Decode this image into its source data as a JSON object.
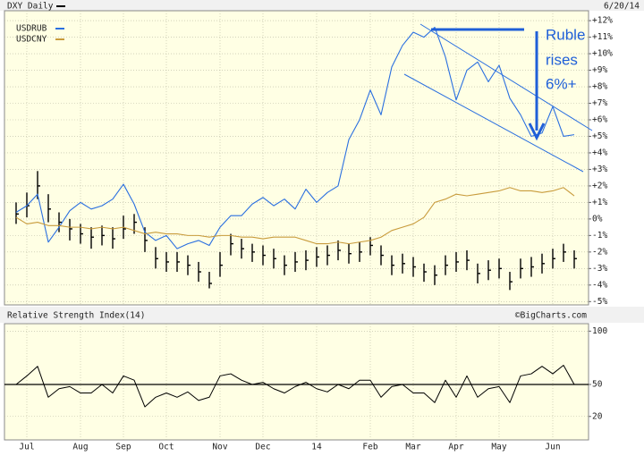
{
  "chart_data": [
    {
      "type": "ohlc",
      "title": "DXY Daily",
      "date": "6/20/14",
      "ohlc": {
        "color": "#000000",
        "high": [
          1.0,
          1.6,
          2.9,
          1.5,
          0.4,
          0.0,
          -0.3,
          -0.5,
          -0.4,
          -0.5,
          0.2,
          0.3,
          -0.5,
          -1.7,
          -2.0,
          -2.0,
          -2.2,
          -2.6,
          -3.2,
          -2.0,
          -0.9,
          -1.2,
          -1.5,
          -1.6,
          -1.8,
          -2.2,
          -2.0,
          -1.9,
          -1.7,
          -1.6,
          -1.3,
          -1.5,
          -1.4,
          -1.1,
          -1.6,
          -2.2,
          -2.1,
          -2.3,
          -2.7,
          -2.8,
          -2.2,
          -2.0,
          -1.9,
          -2.7,
          -2.5,
          -2.4,
          -3.2,
          -2.4,
          -2.3,
          -2.1,
          -1.8,
          -1.5,
          -1.9
        ],
        "low": [
          -0.3,
          0.1,
          1.2,
          -0.2,
          -0.8,
          -1.3,
          -1.5,
          -1.8,
          -1.6,
          -1.8,
          -1.2,
          -0.9,
          -2.0,
          -3.0,
          -3.2,
          -3.2,
          -3.4,
          -3.8,
          -4.2,
          -3.5,
          -2.2,
          -2.4,
          -2.6,
          -2.8,
          -3.0,
          -3.4,
          -3.2,
          -3.1,
          -2.9,
          -2.8,
          -2.5,
          -2.7,
          -2.6,
          -2.2,
          -2.8,
          -3.4,
          -3.3,
          -3.5,
          -3.8,
          -4.0,
          -3.4,
          -3.2,
          -3.1,
          -3.9,
          -3.7,
          -3.6,
          -4.3,
          -3.6,
          -3.5,
          -3.3,
          -3.0,
          -2.6,
          -3.0
        ],
        "close": [
          0.3,
          0.8,
          2.0,
          0.6,
          -0.2,
          -0.6,
          -0.9,
          -1.1,
          -1.0,
          -1.2,
          -0.6,
          -0.2,
          -1.3,
          -2.4,
          -2.6,
          -2.6,
          -2.8,
          -3.2,
          -3.9,
          -2.8,
          -1.5,
          -1.8,
          -2.0,
          -2.2,
          -2.4,
          -2.8,
          -2.6,
          -2.5,
          -2.3,
          -2.2,
          -1.9,
          -2.1,
          -2.0,
          -1.6,
          -2.2,
          -2.8,
          -2.7,
          -2.9,
          -3.2,
          -3.4,
          -2.8,
          -2.6,
          -2.5,
          -3.3,
          -3.1,
          -3.0,
          -3.8,
          -3.0,
          -2.9,
          -2.7,
          -2.4,
          -2.0,
          -2.4
        ]
      },
      "series": [
        {
          "name": "USDRUB",
          "color": "#2a6fe0",
          "values": [
            0.4,
            0.8,
            1.5,
            -1.4,
            -0.5,
            0.5,
            1.0,
            0.6,
            0.8,
            1.2,
            2.1,
            0.9,
            -0.8,
            -1.3,
            -1.0,
            -1.8,
            -1.5,
            -1.3,
            -1.6,
            -0.5,
            0.2,
            0.2,
            0.9,
            1.3,
            0.8,
            1.2,
            0.6,
            1.8,
            1.0,
            1.6,
            2.0,
            4.8,
            6.0,
            7.8,
            6.3,
            9.2,
            10.5,
            11.3,
            11.0,
            11.6,
            9.8,
            7.2,
            9.0,
            9.5,
            8.3,
            9.3,
            7.3,
            6.3,
            5.0,
            5.2,
            6.8,
            5.0,
            5.1
          ]
        },
        {
          "name": "USDCNY",
          "color": "#c89b3c",
          "values": [
            0.1,
            -0.3,
            -0.2,
            -0.4,
            -0.4,
            -0.5,
            -0.5,
            -0.6,
            -0.5,
            -0.6,
            -0.5,
            -0.7,
            -0.9,
            -0.8,
            -0.9,
            -0.9,
            -1.0,
            -1.0,
            -1.1,
            -1.0,
            -1.0,
            -1.1,
            -1.1,
            -1.2,
            -1.1,
            -1.1,
            -1.1,
            -1.3,
            -1.5,
            -1.5,
            -1.4,
            -1.5,
            -1.4,
            -1.3,
            -1.1,
            -0.7,
            -0.5,
            -0.3,
            0.1,
            1.0,
            1.2,
            1.5,
            1.4,
            1.5,
            1.6,
            1.7,
            1.9,
            1.7,
            1.7,
            1.6,
            1.7,
            1.9,
            1.4
          ]
        }
      ],
      "ylim": [
        -5.2,
        12.6
      ],
      "yticks": [
        {
          "value": 12,
          "label": "+12%"
        },
        {
          "value": 11,
          "label": "+11%"
        },
        {
          "value": 10,
          "label": "+10%"
        },
        {
          "value": 9,
          "label": "+9%"
        },
        {
          "value": 8,
          "label": "+8%"
        },
        {
          "value": 7,
          "label": "+7%"
        },
        {
          "value": 6,
          "label": "+6%"
        },
        {
          "value": 5,
          "label": "+5%"
        },
        {
          "value": 4,
          "label": "+4%"
        },
        {
          "value": 3,
          "label": "+3%"
        },
        {
          "value": 2,
          "label": "+2%"
        },
        {
          "value": 1,
          "label": "+1%"
        },
        {
          "value": 0,
          "label": "0%"
        },
        {
          "value": -1,
          "label": "-1%"
        },
        {
          "value": -2,
          "label": "-2%"
        },
        {
          "value": -3,
          "label": "-3%"
        },
        {
          "value": -4,
          "label": "-4%"
        },
        {
          "value": -5,
          "label": "-5%"
        }
      ],
      "grid": true,
      "annotation": [
        "Ruble",
        "rises",
        "6%+"
      ]
    },
    {
      "type": "line",
      "title": "Relative Strength Index(14)",
      "credit": "©BigCharts.com",
      "categories": [
        null,
        "Jul",
        null,
        null,
        null,
        null,
        "Aug",
        null,
        null,
        null,
        "Sep",
        null,
        null,
        null,
        "Oct",
        null,
        null,
        null,
        null,
        "Nov",
        null,
        null,
        null,
        "Dec",
        null,
        null,
        null,
        null,
        "14",
        null,
        null,
        null,
        null,
        "Feb",
        null,
        null,
        null,
        "Mar",
        null,
        null,
        null,
        "Apr",
        null,
        null,
        null,
        "May",
        null,
        null,
        null,
        null,
        "Jun",
        null,
        null
      ],
      "values": [
        50,
        58,
        67,
        38,
        46,
        48,
        42,
        42,
        50,
        42,
        58,
        54,
        29,
        38,
        42,
        38,
        43,
        35,
        38,
        58,
        60,
        54,
        50,
        52,
        46,
        42,
        48,
        52,
        46,
        43,
        50,
        46,
        54,
        54,
        38,
        48,
        50,
        42,
        42,
        33,
        54,
        38,
        58,
        38,
        46,
        48,
        33,
        58,
        60,
        67,
        60,
        68,
        50
      ],
      "color": "#000000",
      "ylim": [
        -2,
        107
      ],
      "yticks": [
        20,
        50,
        100
      ],
      "grid": true,
      "reference_line": 50
    }
  ]
}
